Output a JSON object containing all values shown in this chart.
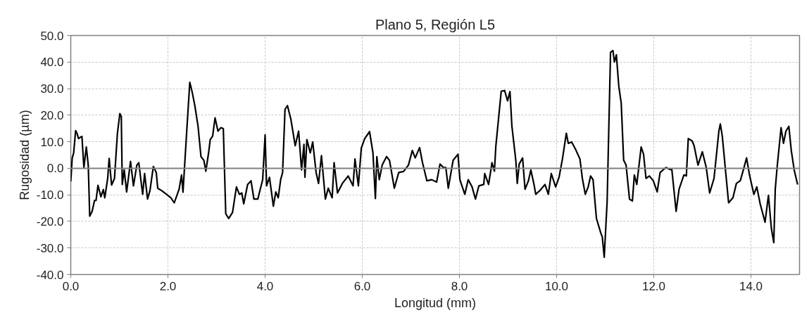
{
  "chart_data": {
    "type": "line",
    "title": "Plano 5, Región L5",
    "xlabel": "Longitud (mm)",
    "ylabel": "Rugosidad (µm)",
    "xlim": [
      0,
      15
    ],
    "ylim": [
      -40,
      50
    ],
    "xticks": [
      {
        "value": 0,
        "label": "0.0"
      },
      {
        "value": 2,
        "label": "2.0"
      },
      {
        "value": 4,
        "label": "4.0"
      },
      {
        "value": 6,
        "label": "6.0"
      },
      {
        "value": 8,
        "label": "8.0"
      },
      {
        "value": 10,
        "label": "10.0"
      },
      {
        "value": 12,
        "label": "12.0"
      },
      {
        "value": 14,
        "label": "14.0"
      }
    ],
    "yticks": [
      {
        "value": -40,
        "label": "-40.0"
      },
      {
        "value": -30,
        "label": "-30.0"
      },
      {
        "value": -20,
        "label": "-20.0"
      },
      {
        "value": -10,
        "label": "-10.0"
      },
      {
        "value": 0,
        "label": "0.0"
      },
      {
        "value": 10,
        "label": "10.0"
      },
      {
        "value": 20,
        "label": "20.0"
      },
      {
        "value": 30,
        "label": "30.0"
      },
      {
        "value": 40,
        "label": "40.0"
      },
      {
        "value": 50,
        "label": "50.0"
      }
    ],
    "grid": true,
    "marker": "none",
    "line_style": "solid",
    "ref_lines": [
      {
        "axis": "y",
        "value": 0,
        "label": null,
        "color": "#808080"
      }
    ],
    "series": [
      {
        "color": "#000000",
        "x": [
          0.0,
          0.03,
          0.06,
          0.1,
          0.13,
          0.16,
          0.2,
          0.23,
          0.27,
          0.32,
          0.36,
          0.39,
          0.44,
          0.49,
          0.52,
          0.56,
          0.62,
          0.67,
          0.7,
          0.76,
          0.79,
          0.84,
          0.9,
          0.96,
          1.01,
          1.04,
          1.06,
          1.1,
          1.15,
          1.23,
          1.29,
          1.36,
          1.4,
          1.48,
          1.52,
          1.58,
          1.63,
          1.7,
          1.76,
          1.79,
          1.87,
          1.97,
          2.06,
          2.13,
          2.23,
          2.28,
          2.31,
          2.39,
          2.45,
          2.5,
          2.55,
          2.62,
          2.68,
          2.74,
          2.78,
          2.84,
          2.87,
          2.92,
          2.97,
          3.03,
          3.09,
          3.14,
          3.19,
          3.25,
          3.33,
          3.41,
          3.47,
          3.52,
          3.56,
          3.64,
          3.71,
          3.77,
          3.85,
          3.9,
          3.95,
          4.0,
          4.03,
          4.09,
          4.17,
          4.22,
          4.27,
          4.32,
          4.36,
          4.41,
          4.46,
          4.53,
          4.62,
          4.69,
          4.75,
          4.8,
          4.82,
          4.86,
          4.93,
          4.98,
          5.05,
          5.1,
          5.16,
          5.24,
          5.3,
          5.38,
          5.42,
          5.49,
          5.59,
          5.71,
          5.81,
          5.85,
          5.92,
          5.98,
          6.05,
          6.15,
          6.22,
          6.27,
          6.3,
          6.35,
          6.41,
          6.5,
          6.56,
          6.66,
          6.75,
          6.85,
          6.95,
          7.03,
          7.09,
          7.18,
          7.24,
          7.33,
          7.43,
          7.53,
          7.6,
          7.67,
          7.72,
          7.77,
          7.87,
          7.97,
          8.01,
          8.11,
          8.18,
          8.26,
          8.33,
          8.4,
          8.5,
          8.52,
          8.6,
          8.67,
          8.72,
          8.75,
          8.86,
          8.93,
          8.99,
          9.04,
          9.08,
          9.16,
          9.19,
          9.23,
          9.3,
          9.35,
          9.42,
          9.47,
          9.54,
          9.57,
          9.66,
          9.76,
          9.83,
          9.89,
          9.98,
          10.05,
          10.12,
          10.2,
          10.24,
          10.31,
          10.39,
          10.48,
          10.53,
          10.59,
          10.65,
          10.7,
          10.75,
          10.82,
          10.91,
          10.94,
          10.98,
          11.04,
          11.11,
          11.16,
          11.19,
          11.23,
          11.28,
          11.33,
          11.38,
          11.43,
          11.5,
          11.56,
          11.6,
          11.65,
          11.74,
          11.79,
          11.84,
          11.91,
          11.99,
          12.07,
          12.13,
          12.25,
          12.34,
          12.37,
          12.46,
          12.52,
          12.62,
          12.67,
          12.71,
          12.79,
          12.83,
          12.91,
          13.0,
          13.08,
          13.15,
          13.24,
          13.34,
          13.37,
          13.41,
          13.49,
          13.54,
          13.63,
          13.7,
          13.78,
          13.85,
          13.91,
          13.97,
          14.06,
          14.12,
          14.19,
          14.29,
          14.36,
          14.42,
          14.47,
          14.5,
          14.54,
          14.62,
          14.67,
          14.72,
          14.78,
          14.83,
          14.89,
          14.96
        ],
        "values": [
          -5.0,
          3.9,
          5.8,
          14.2,
          13.1,
          11.2,
          11.7,
          12.0,
          0.3,
          8.0,
          1.2,
          -18.0,
          -16.2,
          -12.1,
          -12.1,
          -6.4,
          -10.7,
          -8.0,
          -11.1,
          -3.8,
          3.7,
          -6.3,
          -3.8,
          13.1,
          20.6,
          19.5,
          -6.1,
          -0.6,
          -8.9,
          2.6,
          -6.6,
          1.2,
          2.1,
          -9.8,
          -2.0,
          -11.6,
          -8.4,
          0.7,
          -1.6,
          -7.5,
          -8.4,
          -9.8,
          -11.1,
          -13.0,
          -7.9,
          -2.5,
          -9.0,
          14.9,
          32.4,
          28.6,
          24.0,
          15.8,
          4.4,
          3.0,
          -1.1,
          6.2,
          10.8,
          12.1,
          19.0,
          14.0,
          15.3,
          14.9,
          -17.1,
          -18.9,
          -16.6,
          -7.0,
          -9.8,
          -9.3,
          -13.4,
          -6.1,
          -4.7,
          -11.6,
          -11.6,
          -7.9,
          -4.3,
          12.6,
          -6.6,
          -3.4,
          -14.3,
          -8.9,
          -11.1,
          -4.3,
          -1.6,
          22.2,
          23.6,
          18.5,
          8.5,
          14.0,
          -0.6,
          9.0,
          -3.4,
          10.8,
          5.8,
          9.9,
          -1.6,
          -5.7,
          4.8,
          -11.6,
          -7.5,
          -11.1,
          2.1,
          -9.3,
          -5.7,
          -2.9,
          -6.6,
          3.5,
          -6.6,
          7.6,
          11.2,
          13.8,
          5.8,
          -11.4,
          4.4,
          -4.3,
          1.2,
          4.4,
          3.0,
          -7.5,
          -1.6,
          -1.2,
          1.2,
          6.7,
          3.9,
          7.8,
          2.1,
          -4.7,
          -4.3,
          -5.2,
          1.6,
          0.3,
          0.3,
          -7.5,
          3.0,
          5.3,
          -4.3,
          -9.8,
          -4.3,
          -7.0,
          -11.6,
          -6.6,
          -6.1,
          -2.0,
          -6.1,
          2.1,
          -1.1,
          8.5,
          29.0,
          29.3,
          25.4,
          28.9,
          15.8,
          3.0,
          -5.7,
          1.6,
          3.9,
          -7.9,
          -4.7,
          -0.6,
          -6.6,
          -9.8,
          -8.3,
          -6.1,
          -9.8,
          -2.0,
          -7.0,
          -3.4,
          3.5,
          13.2,
          9.4,
          9.9,
          7.1,
          3.5,
          -3.8,
          -9.8,
          -7.0,
          -2.9,
          -4.3,
          -18.9,
          -24.4,
          -25.8,
          -33.5,
          -12.5,
          43.7,
          44.3,
          40.0,
          42.7,
          30.9,
          24.5,
          3.0,
          1.2,
          -11.6,
          -12.3,
          -2.5,
          -6.1,
          8.0,
          5.3,
          -3.8,
          -2.9,
          -4.7,
          -8.9,
          -1.6,
          0.3,
          -0.5,
          -0.2,
          -16.2,
          -7.9,
          -2.5,
          -2.9,
          11.2,
          10.3,
          8.5,
          1.2,
          6.2,
          0.3,
          -9.3,
          -3.8,
          14.0,
          16.7,
          12.1,
          -3.4,
          -13.0,
          -11.1,
          -5.7,
          -4.7,
          -0.2,
          3.9,
          -2.5,
          -9.8,
          -7.0,
          -13.4,
          -20.3,
          -10.2,
          -22.6,
          -28.0,
          -7.9,
          0.7,
          15.3,
          9.4,
          14.0,
          15.8,
          6.7,
          -0.6,
          -6.1
        ]
      }
    ]
  }
}
